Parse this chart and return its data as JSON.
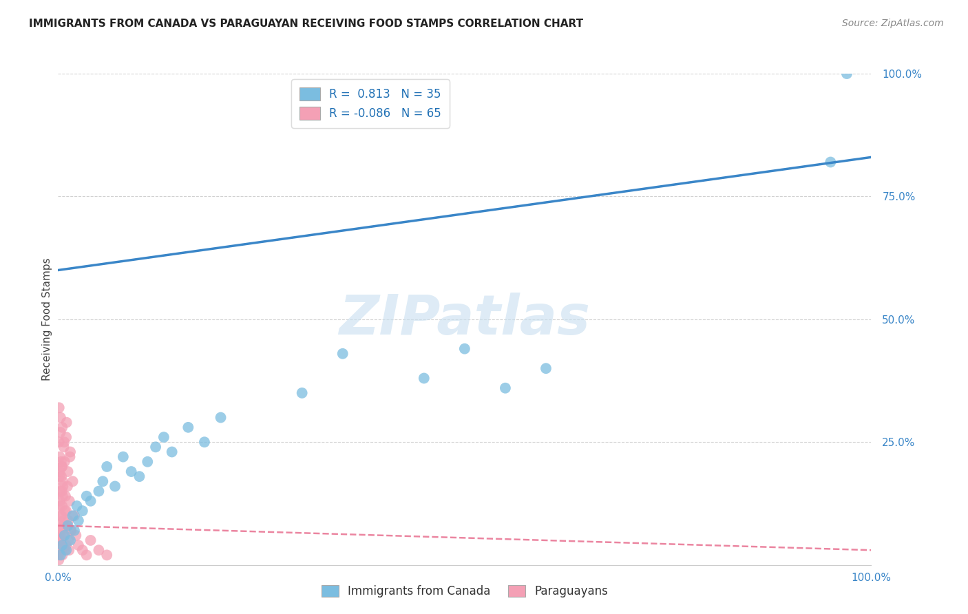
{
  "title": "IMMIGRANTS FROM CANADA VS PARAGUAYAN RECEIVING FOOD STAMPS CORRELATION CHART",
  "source": "Source: ZipAtlas.com",
  "ylabel": "Receiving Food Stamps",
  "watermark": "ZIPatlas",
  "legend_r_canada": "R =  0.813",
  "legend_n_canada": "N = 35",
  "legend_r_paraguay": "R = -0.086",
  "legend_n_paraguay": "N = 65",
  "blue_color": "#7bbde0",
  "pink_color": "#f4a0b5",
  "blue_line_color": "#3a86c8",
  "pink_line_color": "#e87090",
  "watermark_color": "#c8dff0",
  "background": "#ffffff",
  "canada_points_x": [
    0.3,
    0.5,
    0.8,
    1.0,
    1.2,
    1.5,
    1.8,
    2.0,
    2.3,
    2.5,
    3.0,
    3.5,
    4.0,
    5.0,
    5.5,
    6.0,
    7.0,
    8.0,
    9.0,
    10.0,
    11.0,
    12.0,
    13.0,
    14.0,
    16.0,
    18.0,
    20.0,
    30.0,
    35.0,
    45.0,
    50.0,
    55.0,
    60.0,
    95.0,
    97.0
  ],
  "canada_points_y": [
    2.0,
    4.0,
    6.0,
    3.0,
    8.0,
    5.0,
    10.0,
    7.0,
    12.0,
    9.0,
    11.0,
    14.0,
    13.0,
    15.0,
    17.0,
    20.0,
    16.0,
    22.0,
    19.0,
    18.0,
    21.0,
    24.0,
    26.0,
    23.0,
    28.0,
    25.0,
    30.0,
    35.0,
    43.0,
    38.0,
    44.0,
    36.0,
    40.0,
    82.0,
    100.0
  ],
  "paraguay_points_x": [
    0.05,
    0.1,
    0.1,
    0.15,
    0.2,
    0.2,
    0.25,
    0.3,
    0.3,
    0.35,
    0.4,
    0.4,
    0.5,
    0.5,
    0.5,
    0.6,
    0.6,
    0.7,
    0.7,
    0.8,
    0.8,
    0.9,
    1.0,
    1.0,
    1.1,
    1.2,
    1.3,
    1.4,
    1.5,
    1.6,
    1.8,
    2.0,
    2.2,
    2.5,
    3.0,
    3.5,
    4.0,
    5.0,
    6.0,
    0.15,
    0.25,
    0.35,
    0.45,
    0.55,
    0.65,
    0.75,
    0.85,
    0.95,
    1.05,
    1.15,
    1.25,
    1.35,
    1.45,
    1.55,
    0.08,
    0.12,
    0.18,
    0.22,
    0.28,
    0.32,
    0.38,
    0.42,
    0.48,
    0.52,
    0.58
  ],
  "paraguay_points_y": [
    2.0,
    5.0,
    25.0,
    8.0,
    3.0,
    22.0,
    15.0,
    10.0,
    30.0,
    7.0,
    18.0,
    4.0,
    20.0,
    12.0,
    28.0,
    6.0,
    16.0,
    9.0,
    24.0,
    3.0,
    21.0,
    14.0,
    11.0,
    26.0,
    8.0,
    19.0,
    5.0,
    13.0,
    23.0,
    7.0,
    17.0,
    10.0,
    6.0,
    4.0,
    3.0,
    2.0,
    5.0,
    3.0,
    2.0,
    18.0,
    12.0,
    6.0,
    20.0,
    14.0,
    8.0,
    25.0,
    11.0,
    4.0,
    29.0,
    16.0,
    9.0,
    3.0,
    22.0,
    7.0,
    1.0,
    32.0,
    19.0,
    13.0,
    27.0,
    5.0,
    21.0,
    10.0,
    15.0,
    2.0,
    17.0
  ],
  "xmin": 0.0,
  "xmax": 100.0,
  "ymin": 0.0,
  "ymax": 100.0,
  "blue_line_x0": 0.0,
  "blue_line_y0": 60.0,
  "blue_line_x1": 100.0,
  "blue_line_y1": 83.0,
  "pink_line_x0": 0.0,
  "pink_line_y0": 8.0,
  "pink_line_x1": 100.0,
  "pink_line_y1": 3.0
}
